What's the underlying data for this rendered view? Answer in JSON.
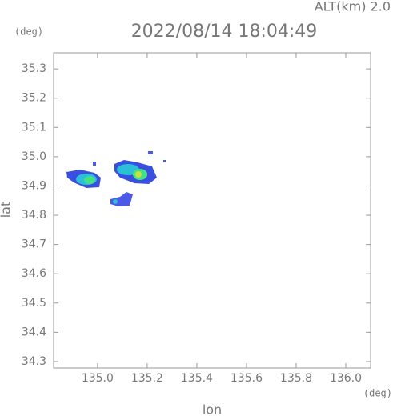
{
  "chart_data": {
    "type": "map",
    "title": "2022/08/14 18:04:49",
    "altitude_label": "ALT(km) 2.0",
    "xlabel": "lon",
    "ylabel": "lat",
    "xunit": "(deg)",
    "yunit": "(deg)",
    "xlim": [
      134.823,
      136.1
    ],
    "ylim": [
      34.278,
      35.355
    ],
    "xticks": [
      {
        "value": 135.0,
        "label": "135.0"
      },
      135.2,
      135.4,
      135.6,
      135.8,
      {
        "value": 136.0,
        "label": "136.0"
      }
    ],
    "yticks": [
      34.3,
      34.4,
      34.5,
      34.6,
      34.7,
      34.8,
      34.9,
      {
        "value": 35.0,
        "label": "35.0"
      },
      35.1,
      35.2,
      35.3
    ]
  }
}
